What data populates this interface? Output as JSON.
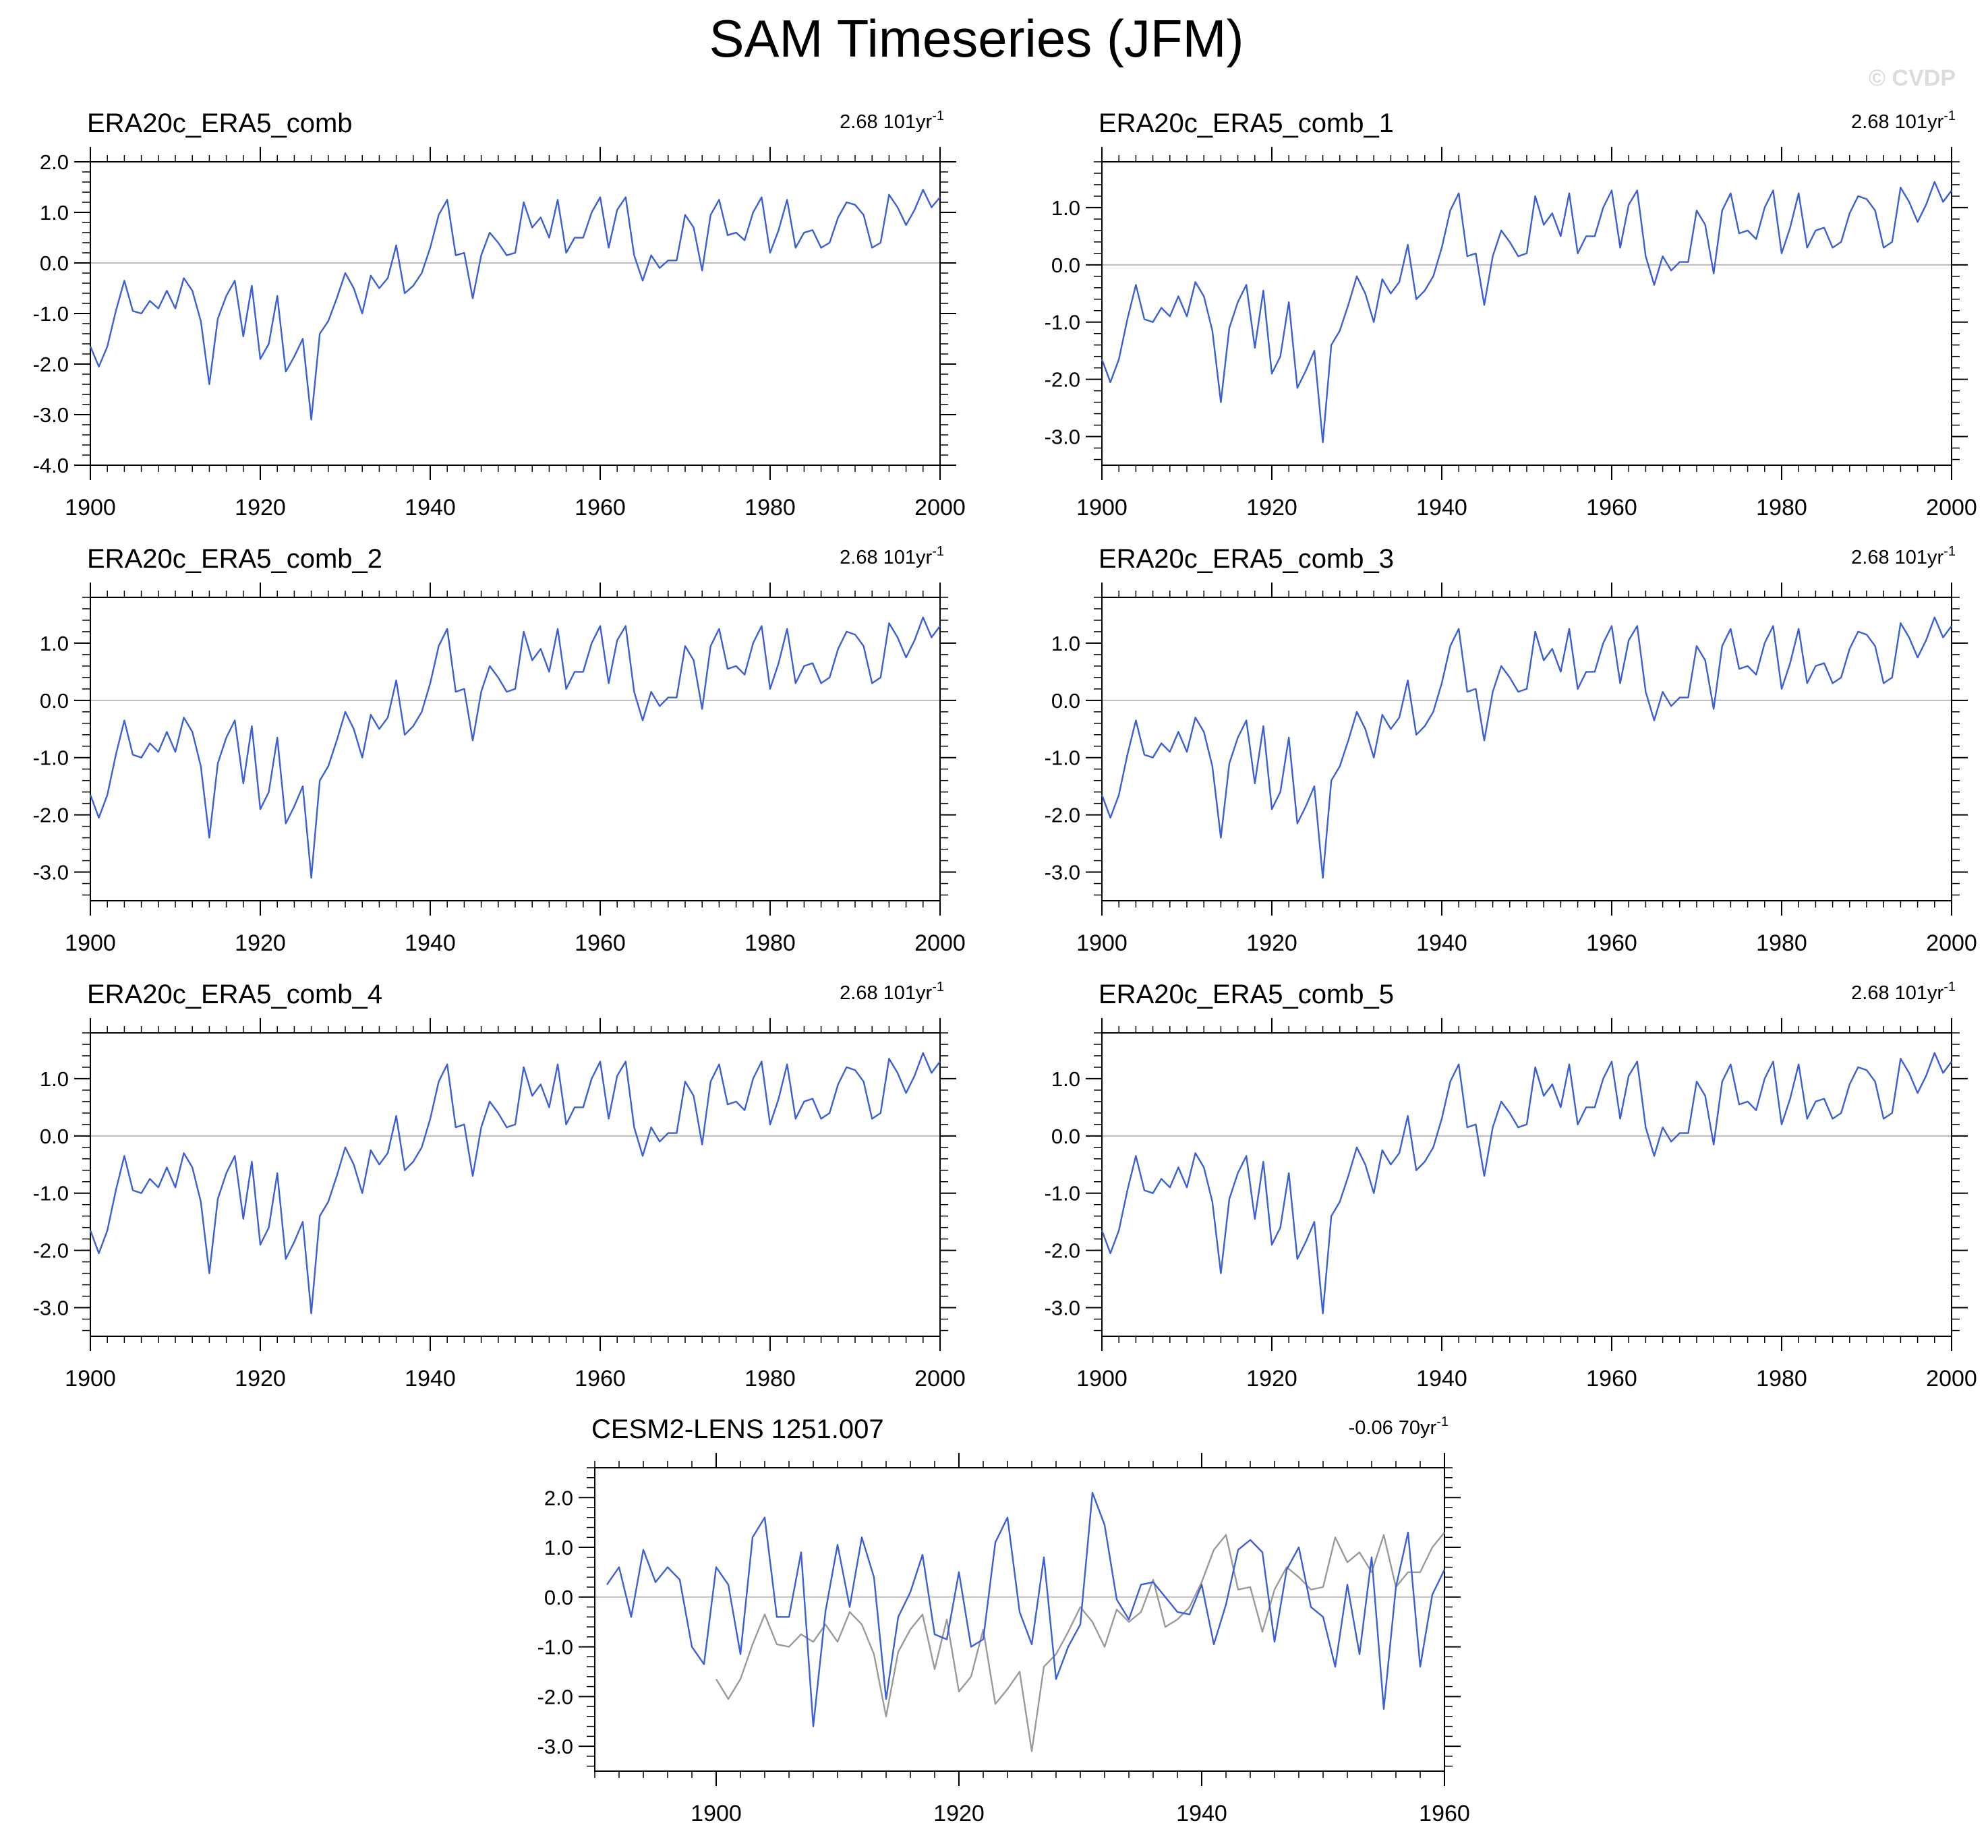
{
  "figure": {
    "title": "SAM Timeseries (JFM)",
    "watermark": "© CVDP",
    "colors": {
      "series": "#3b5fd6",
      "obs_overlay": "#9a9a9a",
      "zero_line": "#bdbdbd",
      "frame": "#000000"
    }
  },
  "chart_data": [
    {
      "type": "line",
      "title": "ERA20c_ERA5_comb",
      "trend": {
        "value": "2.68",
        "span": "101yr",
        "exp": "-1"
      },
      "xlim": [
        1900,
        2000
      ],
      "ylim": [
        -4.0,
        2.0
      ],
      "xticks": [
        1900,
        1920,
        1940,
        1960,
        1980,
        2000
      ],
      "xtick_labels": [
        "1900",
        "1920",
        "1940",
        "1960",
        "1980",
        "2000"
      ],
      "yticks": [
        -4.0,
        -3.0,
        -2.0,
        -1.0,
        0.0,
        1.0,
        2.0
      ],
      "ytick_labels": [
        "-4.0",
        "-3.0",
        "-2.0",
        "-1.0",
        "0.0",
        "1.0",
        "2.0"
      ],
      "series": [
        {
          "name": "ERA20c_ERA5_comb",
          "color": "#3b5fd6",
          "x_start": 1900,
          "values": [
            -1.65,
            -2.05,
            -1.65,
            -0.95,
            -0.35,
            -0.95,
            -1.0,
            -0.75,
            -0.9,
            -0.55,
            -0.9,
            -0.3,
            -0.55,
            -1.15,
            -2.4,
            -1.1,
            -0.65,
            -0.35,
            -1.45,
            -0.45,
            -1.9,
            -1.6,
            -0.65,
            -2.15,
            -1.85,
            -1.5,
            -3.1,
            -1.4,
            -1.15,
            -0.7,
            -0.2,
            -0.5,
            -1.0,
            -0.25,
            -0.5,
            -0.3,
            0.35,
            -0.6,
            -0.45,
            -0.2,
            0.3,
            0.95,
            1.25,
            0.15,
            0.2,
            -0.7,
            0.15,
            0.6,
            0.4,
            0.15,
            0.2,
            1.2,
            0.7,
            0.9,
            0.5,
            1.25,
            0.2,
            0.5,
            0.5,
            1.0,
            1.3,
            0.3,
            1.05,
            1.3,
            0.15,
            -0.35,
            0.15,
            -0.1,
            0.05,
            0.05,
            0.95,
            0.7,
            -0.15,
            0.95,
            1.25,
            0.55,
            0.6,
            0.45,
            1.0,
            1.3,
            0.2,
            0.65,
            1.25,
            0.3,
            0.6,
            0.65,
            0.3,
            0.4,
            0.9,
            1.2,
            1.15,
            0.95,
            0.3,
            0.4,
            1.35,
            1.1,
            0.75,
            1.05,
            1.45,
            1.1,
            1.3
          ]
        }
      ]
    },
    {
      "type": "line",
      "title": "ERA20c_ERA5_comb_1",
      "trend": {
        "value": "2.68",
        "span": "101yr",
        "exp": "-1"
      },
      "xlim": [
        1900,
        2000
      ],
      "ylim": [
        -3.5,
        1.8
      ],
      "xticks": [
        1900,
        1920,
        1940,
        1960,
        1980,
        2000
      ],
      "xtick_labels": [
        "1900",
        "1920",
        "1940",
        "1960",
        "1980",
        "2000"
      ],
      "yticks": [
        -3.0,
        -2.0,
        -1.0,
        0.0,
        1.0
      ],
      "ytick_labels": [
        "-3.0",
        "-2.0",
        "-1.0",
        "0.0",
        "1.0"
      ],
      "series": [
        {
          "name": "ERA20c_ERA5_comb_1",
          "color": "#3b5fd6",
          "x_start": 1900,
          "values": [
            -1.65,
            -2.05,
            -1.65,
            -0.95,
            -0.35,
            -0.95,
            -1.0,
            -0.75,
            -0.9,
            -0.55,
            -0.9,
            -0.3,
            -0.55,
            -1.15,
            -2.4,
            -1.1,
            -0.65,
            -0.35,
            -1.45,
            -0.45,
            -1.9,
            -1.6,
            -0.65,
            -2.15,
            -1.85,
            -1.5,
            -3.1,
            -1.4,
            -1.15,
            -0.7,
            -0.2,
            -0.5,
            -1.0,
            -0.25,
            -0.5,
            -0.3,
            0.35,
            -0.6,
            -0.45,
            -0.2,
            0.3,
            0.95,
            1.25,
            0.15,
            0.2,
            -0.7,
            0.15,
            0.6,
            0.4,
            0.15,
            0.2,
            1.2,
            0.7,
            0.9,
            0.5,
            1.25,
            0.2,
            0.5,
            0.5,
            1.0,
            1.3,
            0.3,
            1.05,
            1.3,
            0.15,
            -0.35,
            0.15,
            -0.1,
            0.05,
            0.05,
            0.95,
            0.7,
            -0.15,
            0.95,
            1.25,
            0.55,
            0.6,
            0.45,
            1.0,
            1.3,
            0.2,
            0.65,
            1.25,
            0.3,
            0.6,
            0.65,
            0.3,
            0.4,
            0.9,
            1.2,
            1.15,
            0.95,
            0.3,
            0.4,
            1.35,
            1.1,
            0.75,
            1.05,
            1.45,
            1.1,
            1.3
          ]
        }
      ]
    },
    {
      "type": "line",
      "title": "ERA20c_ERA5_comb_2",
      "trend": {
        "value": "2.68",
        "span": "101yr",
        "exp": "-1"
      },
      "xlim": [
        1900,
        2000
      ],
      "ylim": [
        -3.5,
        1.8
      ],
      "xticks": [
        1900,
        1920,
        1940,
        1960,
        1980,
        2000
      ],
      "xtick_labels": [
        "1900",
        "1920",
        "1940",
        "1960",
        "1980",
        "2000"
      ],
      "yticks": [
        -3.0,
        -2.0,
        -1.0,
        0.0,
        1.0
      ],
      "ytick_labels": [
        "-3.0",
        "-2.0",
        "-1.0",
        "0.0",
        "1.0"
      ],
      "series": [
        {
          "name": "ERA20c_ERA5_comb_2",
          "color": "#3b5fd6",
          "x_start": 1900,
          "values": [
            -1.65,
            -2.05,
            -1.65,
            -0.95,
            -0.35,
            -0.95,
            -1.0,
            -0.75,
            -0.9,
            -0.55,
            -0.9,
            -0.3,
            -0.55,
            -1.15,
            -2.4,
            -1.1,
            -0.65,
            -0.35,
            -1.45,
            -0.45,
            -1.9,
            -1.6,
            -0.65,
            -2.15,
            -1.85,
            -1.5,
            -3.1,
            -1.4,
            -1.15,
            -0.7,
            -0.2,
            -0.5,
            -1.0,
            -0.25,
            -0.5,
            -0.3,
            0.35,
            -0.6,
            -0.45,
            -0.2,
            0.3,
            0.95,
            1.25,
            0.15,
            0.2,
            -0.7,
            0.15,
            0.6,
            0.4,
            0.15,
            0.2,
            1.2,
            0.7,
            0.9,
            0.5,
            1.25,
            0.2,
            0.5,
            0.5,
            1.0,
            1.3,
            0.3,
            1.05,
            1.3,
            0.15,
            -0.35,
            0.15,
            -0.1,
            0.05,
            0.05,
            0.95,
            0.7,
            -0.15,
            0.95,
            1.25,
            0.55,
            0.6,
            0.45,
            1.0,
            1.3,
            0.2,
            0.65,
            1.25,
            0.3,
            0.6,
            0.65,
            0.3,
            0.4,
            0.9,
            1.2,
            1.15,
            0.95,
            0.3,
            0.4,
            1.35,
            1.1,
            0.75,
            1.05,
            1.45,
            1.1,
            1.3
          ]
        }
      ]
    },
    {
      "type": "line",
      "title": "ERA20c_ERA5_comb_3",
      "trend": {
        "value": "2.68",
        "span": "101yr",
        "exp": "-1"
      },
      "xlim": [
        1900,
        2000
      ],
      "ylim": [
        -3.5,
        1.8
      ],
      "xticks": [
        1900,
        1920,
        1940,
        1960,
        1980,
        2000
      ],
      "xtick_labels": [
        "1900",
        "1920",
        "1940",
        "1960",
        "1980",
        "2000"
      ],
      "yticks": [
        -3.0,
        -2.0,
        -1.0,
        0.0,
        1.0
      ],
      "ytick_labels": [
        "-3.0",
        "-2.0",
        "-1.0",
        "0.0",
        "1.0"
      ],
      "series": [
        {
          "name": "ERA20c_ERA5_comb_3",
          "color": "#3b5fd6",
          "x_start": 1900,
          "values": [
            -1.65,
            -2.05,
            -1.65,
            -0.95,
            -0.35,
            -0.95,
            -1.0,
            -0.75,
            -0.9,
            -0.55,
            -0.9,
            -0.3,
            -0.55,
            -1.15,
            -2.4,
            -1.1,
            -0.65,
            -0.35,
            -1.45,
            -0.45,
            -1.9,
            -1.6,
            -0.65,
            -2.15,
            -1.85,
            -1.5,
            -3.1,
            -1.4,
            -1.15,
            -0.7,
            -0.2,
            -0.5,
            -1.0,
            -0.25,
            -0.5,
            -0.3,
            0.35,
            -0.6,
            -0.45,
            -0.2,
            0.3,
            0.95,
            1.25,
            0.15,
            0.2,
            -0.7,
            0.15,
            0.6,
            0.4,
            0.15,
            0.2,
            1.2,
            0.7,
            0.9,
            0.5,
            1.25,
            0.2,
            0.5,
            0.5,
            1.0,
            1.3,
            0.3,
            1.05,
            1.3,
            0.15,
            -0.35,
            0.15,
            -0.1,
            0.05,
            0.05,
            0.95,
            0.7,
            -0.15,
            0.95,
            1.25,
            0.55,
            0.6,
            0.45,
            1.0,
            1.3,
            0.2,
            0.65,
            1.25,
            0.3,
            0.6,
            0.65,
            0.3,
            0.4,
            0.9,
            1.2,
            1.15,
            0.95,
            0.3,
            0.4,
            1.35,
            1.1,
            0.75,
            1.05,
            1.45,
            1.1,
            1.3
          ]
        }
      ]
    },
    {
      "type": "line",
      "title": "ERA20c_ERA5_comb_4",
      "trend": {
        "value": "2.68",
        "span": "101yr",
        "exp": "-1"
      },
      "xlim": [
        1900,
        2000
      ],
      "ylim": [
        -3.5,
        1.8
      ],
      "xticks": [
        1900,
        1920,
        1940,
        1960,
        1980,
        2000
      ],
      "xtick_labels": [
        "1900",
        "1920",
        "1940",
        "1960",
        "1980",
        "2000"
      ],
      "yticks": [
        -3.0,
        -2.0,
        -1.0,
        0.0,
        1.0
      ],
      "ytick_labels": [
        "-3.0",
        "-2.0",
        "-1.0",
        "0.0",
        "1.0"
      ],
      "series": [
        {
          "name": "ERA20c_ERA5_comb_4",
          "color": "#3b5fd6",
          "x_start": 1900,
          "values": [
            -1.65,
            -2.05,
            -1.65,
            -0.95,
            -0.35,
            -0.95,
            -1.0,
            -0.75,
            -0.9,
            -0.55,
            -0.9,
            -0.3,
            -0.55,
            -1.15,
            -2.4,
            -1.1,
            -0.65,
            -0.35,
            -1.45,
            -0.45,
            -1.9,
            -1.6,
            -0.65,
            -2.15,
            -1.85,
            -1.5,
            -3.1,
            -1.4,
            -1.15,
            -0.7,
            -0.2,
            -0.5,
            -1.0,
            -0.25,
            -0.5,
            -0.3,
            0.35,
            -0.6,
            -0.45,
            -0.2,
            0.3,
            0.95,
            1.25,
            0.15,
            0.2,
            -0.7,
            0.15,
            0.6,
            0.4,
            0.15,
            0.2,
            1.2,
            0.7,
            0.9,
            0.5,
            1.25,
            0.2,
            0.5,
            0.5,
            1.0,
            1.3,
            0.3,
            1.05,
            1.3,
            0.15,
            -0.35,
            0.15,
            -0.1,
            0.05,
            0.05,
            0.95,
            0.7,
            -0.15,
            0.95,
            1.25,
            0.55,
            0.6,
            0.45,
            1.0,
            1.3,
            0.2,
            0.65,
            1.25,
            0.3,
            0.6,
            0.65,
            0.3,
            0.4,
            0.9,
            1.2,
            1.15,
            0.95,
            0.3,
            0.4,
            1.35,
            1.1,
            0.75,
            1.05,
            1.45,
            1.1,
            1.3
          ]
        }
      ]
    },
    {
      "type": "line",
      "title": "ERA20c_ERA5_comb_5",
      "trend": {
        "value": "2.68",
        "span": "101yr",
        "exp": "-1"
      },
      "xlim": [
        1900,
        2000
      ],
      "ylim": [
        -3.5,
        1.8
      ],
      "xticks": [
        1900,
        1920,
        1940,
        1960,
        1980,
        2000
      ],
      "xtick_labels": [
        "1900",
        "1920",
        "1940",
        "1960",
        "1980",
        "2000"
      ],
      "yticks": [
        -3.0,
        -2.0,
        -1.0,
        0.0,
        1.0
      ],
      "ytick_labels": [
        "-3.0",
        "-2.0",
        "-1.0",
        "0.0",
        "1.0"
      ],
      "series": [
        {
          "name": "ERA20c_ERA5_comb_5",
          "color": "#3b5fd6",
          "x_start": 1900,
          "values": [
            -1.65,
            -2.05,
            -1.65,
            -0.95,
            -0.35,
            -0.95,
            -1.0,
            -0.75,
            -0.9,
            -0.55,
            -0.9,
            -0.3,
            -0.55,
            -1.15,
            -2.4,
            -1.1,
            -0.65,
            -0.35,
            -1.45,
            -0.45,
            -1.9,
            -1.6,
            -0.65,
            -2.15,
            -1.85,
            -1.5,
            -3.1,
            -1.4,
            -1.15,
            -0.7,
            -0.2,
            -0.5,
            -1.0,
            -0.25,
            -0.5,
            -0.3,
            0.35,
            -0.6,
            -0.45,
            -0.2,
            0.3,
            0.95,
            1.25,
            0.15,
            0.2,
            -0.7,
            0.15,
            0.6,
            0.4,
            0.15,
            0.2,
            1.2,
            0.7,
            0.9,
            0.5,
            1.25,
            0.2,
            0.5,
            0.5,
            1.0,
            1.3,
            0.3,
            1.05,
            1.3,
            0.15,
            -0.35,
            0.15,
            -0.1,
            0.05,
            0.05,
            0.95,
            0.7,
            -0.15,
            0.95,
            1.25,
            0.55,
            0.6,
            0.45,
            1.0,
            1.3,
            0.2,
            0.65,
            1.25,
            0.3,
            0.6,
            0.65,
            0.3,
            0.4,
            0.9,
            1.2,
            1.15,
            0.95,
            0.3,
            0.4,
            1.35,
            1.1,
            0.75,
            1.05,
            1.45,
            1.1,
            1.3
          ]
        }
      ]
    },
    {
      "type": "line",
      "title": "CESM2-LENS 1251.007",
      "trend": {
        "value": "-0.06",
        "span": "70yr",
        "exp": "-1"
      },
      "xlim": [
        1890,
        1960
      ],
      "ylim": [
        -3.5,
        2.6
      ],
      "xticks": [
        1900,
        1920,
        1940,
        1960
      ],
      "xtick_labels": [
        "1900",
        "1920",
        "1940",
        "1960"
      ],
      "yticks": [
        -3.0,
        -2.0,
        -1.0,
        0.0,
        1.0,
        2.0
      ],
      "ytick_labels": [
        "-3.0",
        "-2.0",
        "-1.0",
        "0.0",
        "1.0",
        "2.0"
      ],
      "series": [
        {
          "name": "CESM2-LENS 1251.007",
          "color": "#3b5fd6",
          "x_start": 1891,
          "values": [
            0.25,
            0.6,
            -0.4,
            0.95,
            0.3,
            0.6,
            0.35,
            -1.0,
            -1.35,
            0.6,
            0.25,
            -1.15,
            1.2,
            1.6,
            -0.4,
            -0.4,
            0.9,
            -2.6,
            -0.3,
            1.05,
            -0.2,
            1.2,
            0.4,
            -2.05,
            -0.4,
            0.1,
            0.85,
            -0.75,
            -0.85,
            0.5,
            -1.0,
            -0.85,
            1.1,
            1.6,
            -0.3,
            -0.95,
            0.8,
            -1.65,
            -1.0,
            -0.55,
            2.1,
            1.45,
            -0.05,
            -0.45,
            0.25,
            0.3,
            0.0,
            -0.3,
            -0.35,
            0.25,
            -0.95,
            -0.15,
            0.95,
            1.15,
            0.9,
            -0.9,
            0.55,
            1.0,
            -0.2,
            -0.4,
            -1.4,
            0.25,
            -1.15,
            0.8,
            -2.25,
            0.2,
            1.3,
            -1.4,
            0.05,
            0.55
          ]
        },
        {
          "name": "ERA20c_ERA5_comb",
          "color": "#9a9a9a",
          "x_start": 1900,
          "values": [
            -1.65,
            -2.05,
            -1.65,
            -0.95,
            -0.35,
            -0.95,
            -1.0,
            -0.75,
            -0.9,
            -0.55,
            -0.9,
            -0.3,
            -0.55,
            -1.15,
            -2.4,
            -1.1,
            -0.65,
            -0.35,
            -1.45,
            -0.45,
            -1.9,
            -1.6,
            -0.65,
            -2.15,
            -1.85,
            -1.5,
            -3.1,
            -1.4,
            -1.15,
            -0.7,
            -0.2,
            -0.5,
            -1.0,
            -0.25,
            -0.5,
            -0.3,
            0.35,
            -0.6,
            -0.45,
            -0.2,
            0.3,
            0.95,
            1.25,
            0.15,
            0.2,
            -0.7,
            0.15,
            0.6,
            0.4,
            0.15,
            0.2,
            1.2,
            0.7,
            0.9,
            0.5,
            1.25,
            0.2,
            0.5,
            0.5,
            1.0,
            1.3
          ]
        }
      ]
    }
  ]
}
